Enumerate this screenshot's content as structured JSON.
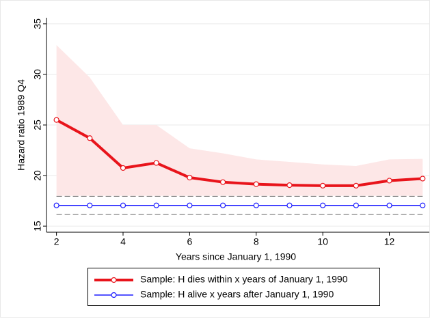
{
  "chart_data": {
    "type": "line",
    "y_label": "Hazard ratio 1989 Q4",
    "x_label": "Years since January 1, 1990",
    "x": [
      2,
      3,
      4,
      5,
      6,
      7,
      8,
      9,
      10,
      11,
      12,
      13
    ],
    "xlim": [
      1.7,
      13.2
    ],
    "ylim": [
      14.4,
      35.6
    ],
    "xticks": [
      2,
      4,
      6,
      8,
      10,
      12
    ],
    "yticks": [
      15,
      20,
      25,
      30,
      35
    ],
    "grid": true,
    "series": [
      {
        "name": "Sample: H dies within x years of January 1, 1990",
        "color": "#e8141b",
        "width": 4,
        "ci_style": "band",
        "ci_color": "#fde7e7",
        "values": [
          25.5,
          23.7,
          20.75,
          21.25,
          19.8,
          19.35,
          19.15,
          19.05,
          19.0,
          19.0,
          19.5,
          19.7
        ],
        "ci_upper": [
          32.9,
          29.7,
          25.0,
          25.0,
          22.7,
          22.2,
          21.6,
          21.35,
          21.1,
          20.95,
          21.6,
          21.65
        ],
        "ci_lower": [
          18.0,
          18.0,
          18.0,
          18.0,
          18.0,
          18.0,
          18.0,
          18.0,
          18.0,
          18.0,
          18.0,
          18.0
        ]
      },
      {
        "name": "Sample: H alive x years after January 1, 1990",
        "color": "#1a1aff",
        "width": 1.5,
        "ci_style": "dashed",
        "ci_color": "#777777",
        "values": [
          17.05,
          17.05,
          17.05,
          17.05,
          17.05,
          17.05,
          17.05,
          17.05,
          17.05,
          17.05,
          17.05,
          17.05
        ],
        "ci_upper": [
          17.95,
          17.95,
          17.95,
          17.95,
          17.95,
          17.95,
          17.95,
          17.95,
          17.95,
          17.95,
          17.95,
          17.95
        ],
        "ci_lower": [
          16.15,
          16.15,
          16.15,
          16.15,
          16.15,
          16.15,
          16.15,
          16.15,
          16.15,
          16.15,
          16.15,
          16.15
        ]
      }
    ]
  }
}
